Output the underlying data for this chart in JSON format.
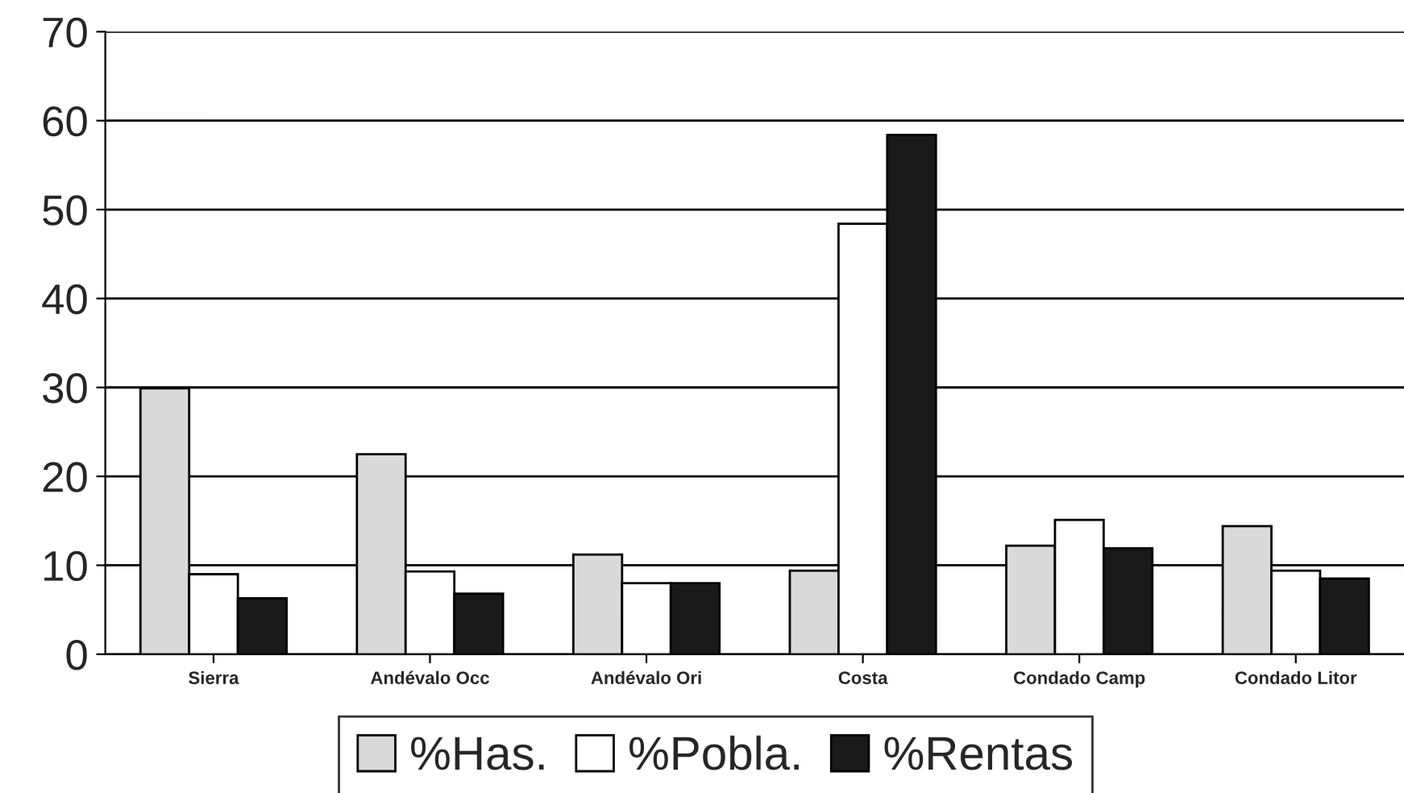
{
  "chart_data": {
    "type": "bar",
    "categories": [
      "Sierra",
      "Andévalo Occ",
      "Andévalo Ori",
      "Costa",
      "Condado Camp",
      "Condado Litor"
    ],
    "series": [
      {
        "name": "%Has.",
        "color": "#d9d9d9",
        "values": [
          29.9,
          22.5,
          11.2,
          9.4,
          12.2,
          14.4
        ]
      },
      {
        "name": "%Pobla.",
        "color": "#ffffff",
        "values": [
          9.0,
          9.3,
          8.0,
          48.4,
          15.1,
          9.4
        ]
      },
      {
        "name": "%Rentas",
        "color": "#1a1a1a",
        "values": [
          6.3,
          6.8,
          8.0,
          58.4,
          11.9,
          8.5
        ]
      }
    ],
    "ylim": [
      0,
      70
    ],
    "yticks": [
      0,
      10,
      20,
      30,
      40,
      50,
      60,
      70
    ],
    "grid": "y",
    "legend": "bottom"
  }
}
